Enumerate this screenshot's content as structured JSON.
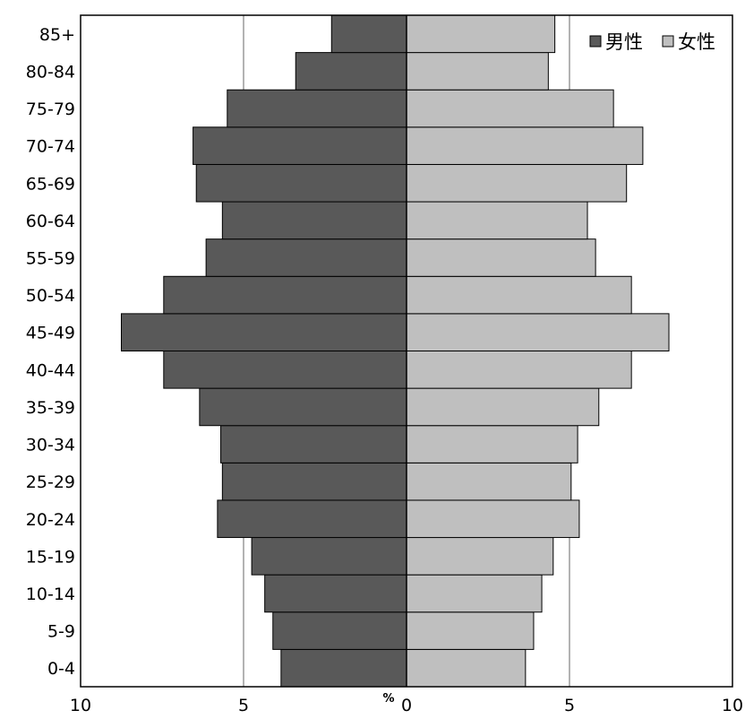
{
  "chart_data": {
    "type": "bar",
    "orientation": "horizontal",
    "layout": "population-pyramid",
    "categories": [
      "0-4",
      "5-9",
      "10-14",
      "15-19",
      "20-24",
      "25-29",
      "30-34",
      "35-39",
      "40-44",
      "45-49",
      "50-54",
      "55-59",
      "60-64",
      "65-69",
      "70-74",
      "75-79",
      "80-84",
      "85+"
    ],
    "series": [
      {
        "name": "男性",
        "color": "#595959",
        "values": [
          3.85,
          4.1,
          4.35,
          4.75,
          5.8,
          5.65,
          5.7,
          6.35,
          7.45,
          8.75,
          7.45,
          6.15,
          5.65,
          6.45,
          6.55,
          5.5,
          3.4,
          2.3
        ]
      },
      {
        "name": "女性",
        "color": "#bfbfbf",
        "values": [
          3.65,
          3.9,
          4.15,
          4.5,
          5.3,
          5.05,
          5.25,
          5.9,
          6.9,
          8.05,
          6.9,
          5.8,
          5.55,
          6.75,
          7.25,
          6.35,
          4.35,
          4.55
        ]
      }
    ],
    "xlim": [
      -10,
      10
    ],
    "x_ticks": [
      {
        "value": -10,
        "label": "10"
      },
      {
        "value": -5,
        "label": "5"
      },
      {
        "value": 0,
        "label": "0"
      },
      {
        "value": 5,
        "label": "5"
      },
      {
        "value": 10,
        "label": "10"
      }
    ],
    "unit_label": "%",
    "gridlines": [
      -5,
      5
    ],
    "legend_position": "top-right",
    "title": "",
    "xlabel": "%",
    "ylabel": ""
  }
}
